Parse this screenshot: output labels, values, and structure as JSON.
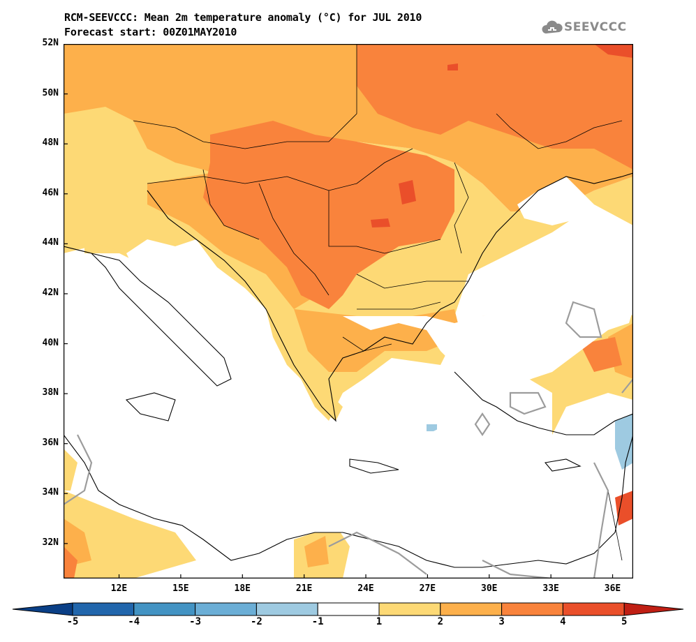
{
  "title": {
    "line1": "RCM-SEEVCCC: Mean 2m temperature anomaly (°C) for JUL 2010",
    "line2": "Forecast start: 00Z01MAY2010"
  },
  "logo": {
    "text": "SEEVCCC",
    "icon": "cloud-logo-icon",
    "color": "#8a8a8a"
  },
  "map": {
    "lat_range": [
      30.6,
      52
    ],
    "lon_range": [
      9.3,
      37
    ],
    "lat_labels": [
      "52N",
      "50N",
      "48N",
      "46N",
      "44N",
      "42N",
      "40N",
      "38N",
      "36N",
      "34N",
      "32N"
    ],
    "lon_labels": [
      "12E",
      "15E",
      "18E",
      "21E",
      "24E",
      "27E",
      "30E",
      "33E",
      "36E"
    ],
    "lat_ticks": [
      52,
      50,
      48,
      46,
      44,
      42,
      40,
      38,
      36,
      34,
      32
    ],
    "lon_ticks": [
      12,
      15,
      18,
      21,
      24,
      27,
      30,
      33,
      36
    ]
  },
  "colorbar": {
    "labels": [
      "-5",
      "-4",
      "-3",
      "-2",
      "-1",
      "1",
      "2",
      "3",
      "4",
      "5"
    ],
    "colors": [
      "#0a3f86",
      "#2166ac",
      "#4393c3",
      "#6baed6",
      "#9ecae1",
      "#ffffff",
      "#fdd975",
      "#fdb04b",
      "#f9833c",
      "#ea4f2a",
      "#c01f14"
    ]
  }
}
